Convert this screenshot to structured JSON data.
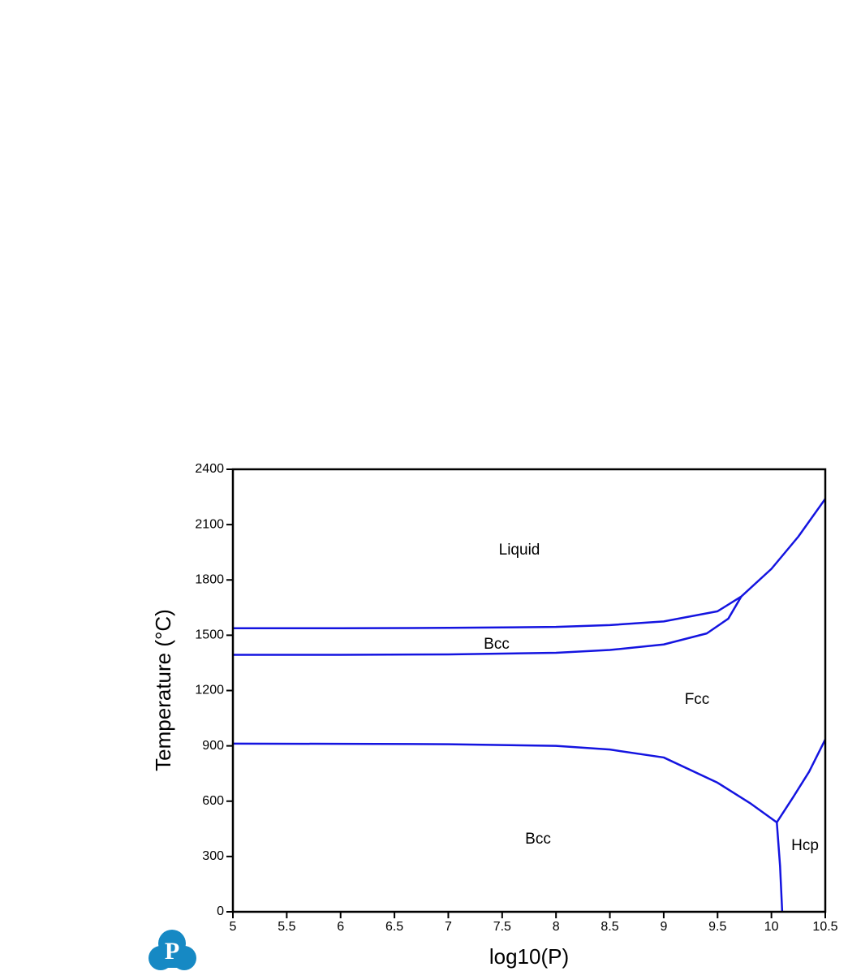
{
  "chart_data": {
    "type": "line",
    "xlabel": "log10(P)",
    "ylabel": "Temperature (°C)",
    "xlim": [
      5,
      10.5
    ],
    "xticks": [
      5,
      5.5,
      6,
      6.5,
      7,
      7.5,
      8,
      8.5,
      9,
      9.5,
      10,
      10.5
    ],
    "ylim": [
      0,
      2400
    ],
    "yticks": [
      0,
      300,
      600,
      900,
      1200,
      1500,
      1800,
      2100,
      2400
    ],
    "grid": false,
    "series": [
      {
        "color": "#1414e0",
        "x": [
          5,
          6,
          7,
          8,
          8.5,
          9,
          9.5,
          9.72,
          10,
          10.25,
          10.5
        ],
        "values": [
          1538,
          1538,
          1540,
          1545,
          1555,
          1575,
          1630,
          1710,
          1860,
          2035,
          2240
        ]
      },
      {
        "color": "#1414e0",
        "x": [
          5,
          6,
          7,
          8,
          8.5,
          9,
          9.4,
          9.6,
          9.72
        ],
        "values": [
          1394,
          1394,
          1396,
          1405,
          1420,
          1450,
          1510,
          1590,
          1710
        ]
      },
      {
        "color": "#1414e0",
        "x": [
          5,
          6,
          7,
          8,
          8.5,
          9,
          9.5,
          9.8,
          10.05
        ],
        "values": [
          912,
          911,
          909,
          900,
          880,
          837,
          700,
          590,
          485
        ]
      },
      {
        "color": "#1414e0",
        "x": [
          10.05,
          10.08,
          10.1
        ],
        "values": [
          485,
          250,
          0
        ]
      },
      {
        "color": "#1414e0",
        "x": [
          10.05,
          10.2,
          10.35,
          10.5
        ],
        "values": [
          485,
          620,
          760,
          935
        ]
      }
    ],
    "annotations": [
      "Liquid",
      "Bcc",
      "Fcc",
      "Bcc",
      "Hcp"
    ],
    "logo": "P"
  }
}
